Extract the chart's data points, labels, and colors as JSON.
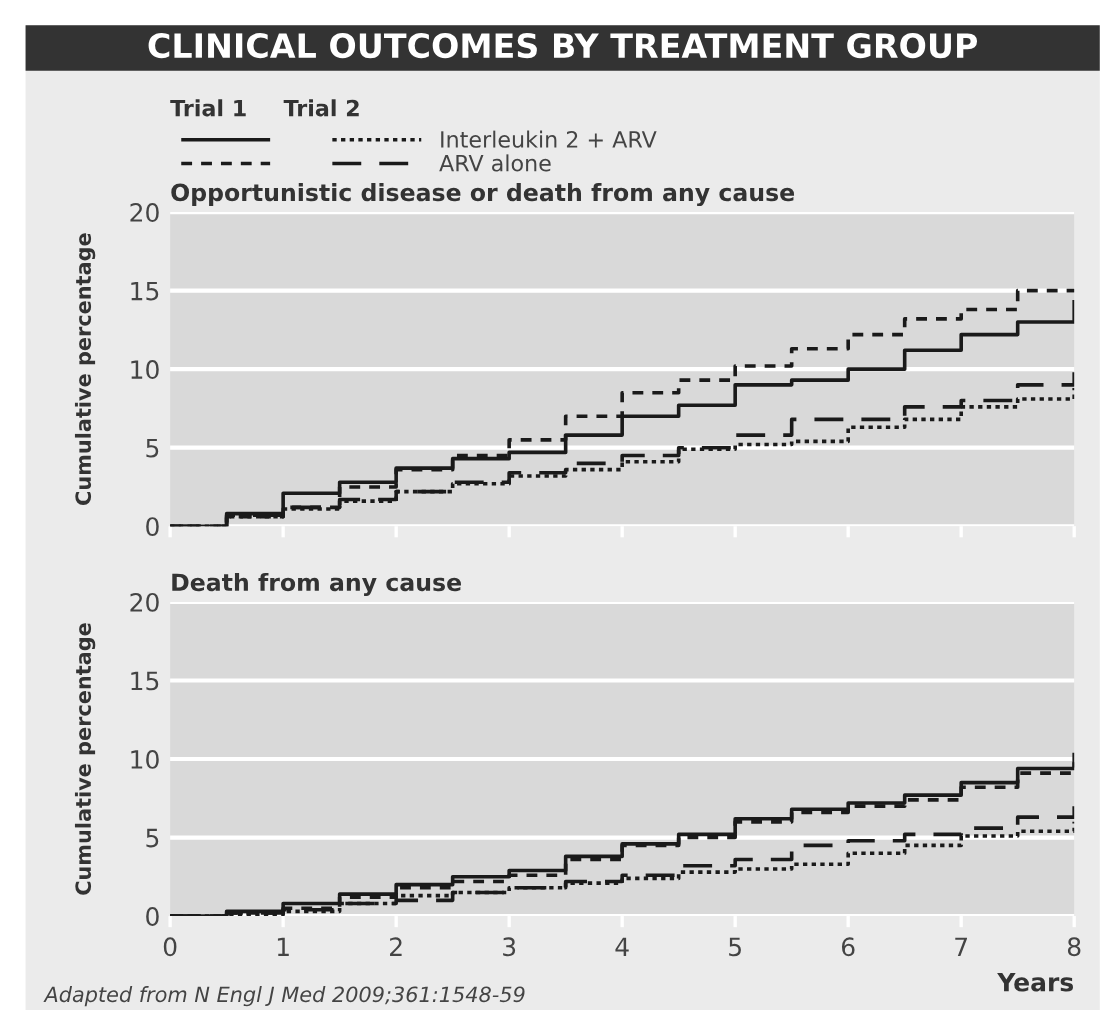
{
  "chart_data": [
    {
      "type": "step",
      "title": "CLINICAL OUTCOMES BY TREATMENT GROUP",
      "subtitle": "Opportunistic disease or death from any cause",
      "ylabel": "Cumulative percentage",
      "x": [
        0,
        0.5,
        1,
        1.5,
        2,
        2.5,
        3,
        3.5,
        4,
        4.5,
        5,
        5.5,
        6,
        6.5,
        7,
        7.5,
        8
      ],
      "series": [
        {
          "color": "#1a1a1a",
          "line_style": "solid",
          "values": [
            0,
            0.8,
            2.1,
            2.8,
            3.7,
            4.3,
            4.7,
            5.8,
            7.0,
            7.7,
            9.0,
            9.3,
            10.0,
            11.2,
            12.2,
            13.0,
            14.4
          ]
        },
        {
          "name": "Interleukin 2 + ARV",
          "color": "#1a1a1a",
          "line_style": "dotted",
          "values": [
            0,
            0.6,
            1.1,
            1.6,
            2.2,
            2.7,
            3.2,
            3.6,
            4.1,
            4.9,
            5.2,
            5.4,
            6.3,
            6.8,
            7.6,
            8.1,
            8.8
          ]
        },
        {
          "color": "#1a1a1a",
          "line_style": "dashed",
          "values": [
            0,
            0.6,
            1.2,
            2.5,
            3.6,
            4.5,
            5.5,
            7.0,
            8.5,
            9.3,
            10.2,
            11.3,
            12.2,
            13.2,
            13.8,
            15.0,
            15.1
          ]
        },
        {
          "name": "ARV alone",
          "color": "#1a1a1a",
          "line_style": "longdash",
          "values": [
            0,
            0.7,
            1.2,
            1.7,
            2.2,
            2.8,
            3.4,
            4.0,
            4.5,
            5.0,
            5.8,
            6.8,
            6.8,
            7.6,
            8.0,
            9.0,
            9.8
          ]
        }
      ],
      "annotations": [
        "Trial 1",
        "Trial 2"
      ],
      "xlim": [
        0,
        8
      ],
      "xticks": [
        0,
        1,
        2,
        3,
        4,
        5,
        6,
        7,
        8
      ],
      "ylim": [
        0,
        20
      ],
      "yticks": [
        0,
        5,
        10,
        15,
        20
      ],
      "tick_labels": "y",
      "grid": "y",
      "legend": "top left"
    },
    {
      "type": "step",
      "subtitle": "Death from any cause",
      "ylabel": "Cumulative percentage",
      "xlabel": "Years",
      "x": [
        0,
        0.5,
        1,
        1.5,
        2,
        2.5,
        3,
        3.5,
        4,
        4.5,
        5,
        5.5,
        6,
        6.5,
        7,
        7.5,
        8
      ],
      "series": [
        {
          "color": "#1a1a1a",
          "line_style": "solid",
          "values": [
            0,
            0.3,
            0.8,
            1.4,
            2.0,
            2.5,
            2.9,
            3.8,
            4.6,
            5.2,
            6.2,
            6.8,
            7.2,
            7.7,
            8.5,
            9.4,
            10.4
          ]
        },
        {
          "color": "#1a1a1a",
          "line_style": "dotted",
          "values": [
            0,
            0.1,
            0.3,
            0.8,
            1.3,
            1.5,
            1.8,
            2.1,
            2.4,
            2.8,
            3.0,
            3.3,
            4.0,
            4.5,
            5.1,
            5.4,
            6.0
          ]
        },
        {
          "color": "#1a1a1a",
          "line_style": "dashed",
          "values": [
            0,
            0.2,
            0.5,
            1.2,
            1.8,
            2.2,
            2.6,
            3.6,
            4.5,
            5.0,
            6.0,
            6.6,
            7.0,
            7.4,
            8.2,
            9.1,
            9.8
          ]
        },
        {
          "color": "#1a1a1a",
          "line_style": "longdash",
          "values": [
            0,
            0.2,
            0.4,
            0.8,
            1.0,
            1.5,
            1.8,
            2.2,
            2.6,
            3.2,
            3.6,
            4.5,
            4.8,
            5.2,
            5.6,
            6.3,
            7.0
          ]
        }
      ],
      "annotations": [
        "Adapted from N Engl J Med 2009;361:1548-59"
      ],
      "xlim": [
        0,
        8
      ],
      "xticks": [
        0,
        1,
        2,
        3,
        4,
        5,
        6,
        7,
        8
      ],
      "ylim": [
        0,
        20
      ],
      "yticks": [
        0,
        5,
        10,
        15,
        20
      ],
      "grid": "y"
    }
  ]
}
